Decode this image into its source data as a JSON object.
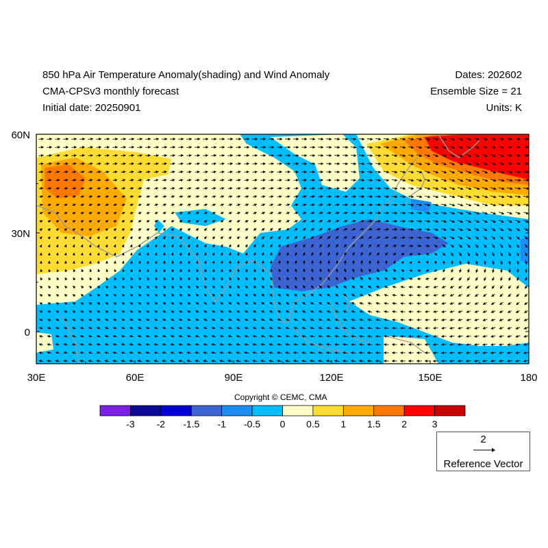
{
  "header": {
    "title_line1": "850 hPa Air Temperature Anomaly(shading) and Wind Anomaly",
    "title_line2": "CMA-CPSv3 monthly forecast",
    "title_line3": "Initial date: 20250901",
    "dates": "Dates: 202602",
    "ensemble": "Ensemble Size = 21",
    "units": "Units: K"
  },
  "map": {
    "lat_labels": [
      "60N",
      "30N",
      "0"
    ],
    "lon_labels": [
      "30E",
      "60E",
      "90E",
      "120E",
      "150E",
      "180"
    ]
  },
  "colorbar": {
    "colors": [
      "#7d1ee6",
      "#0a0a96",
      "#0000d2",
      "#3c64d2",
      "#1e8cf0",
      "#00beff",
      "#ffffc8",
      "#ffdc32",
      "#ffaa00",
      "#ff7800",
      "#ff0000",
      "#c80000"
    ],
    "labels": [
      "-3",
      "-2",
      "-1.5",
      "-1",
      "-0.5",
      "0",
      "0.5",
      "1",
      "1.5",
      "2",
      "3"
    ]
  },
  "copyright": "Copyright © CEMC, CMA",
  "reference_vector": {
    "value": "2",
    "label": "Reference Vector"
  }
}
